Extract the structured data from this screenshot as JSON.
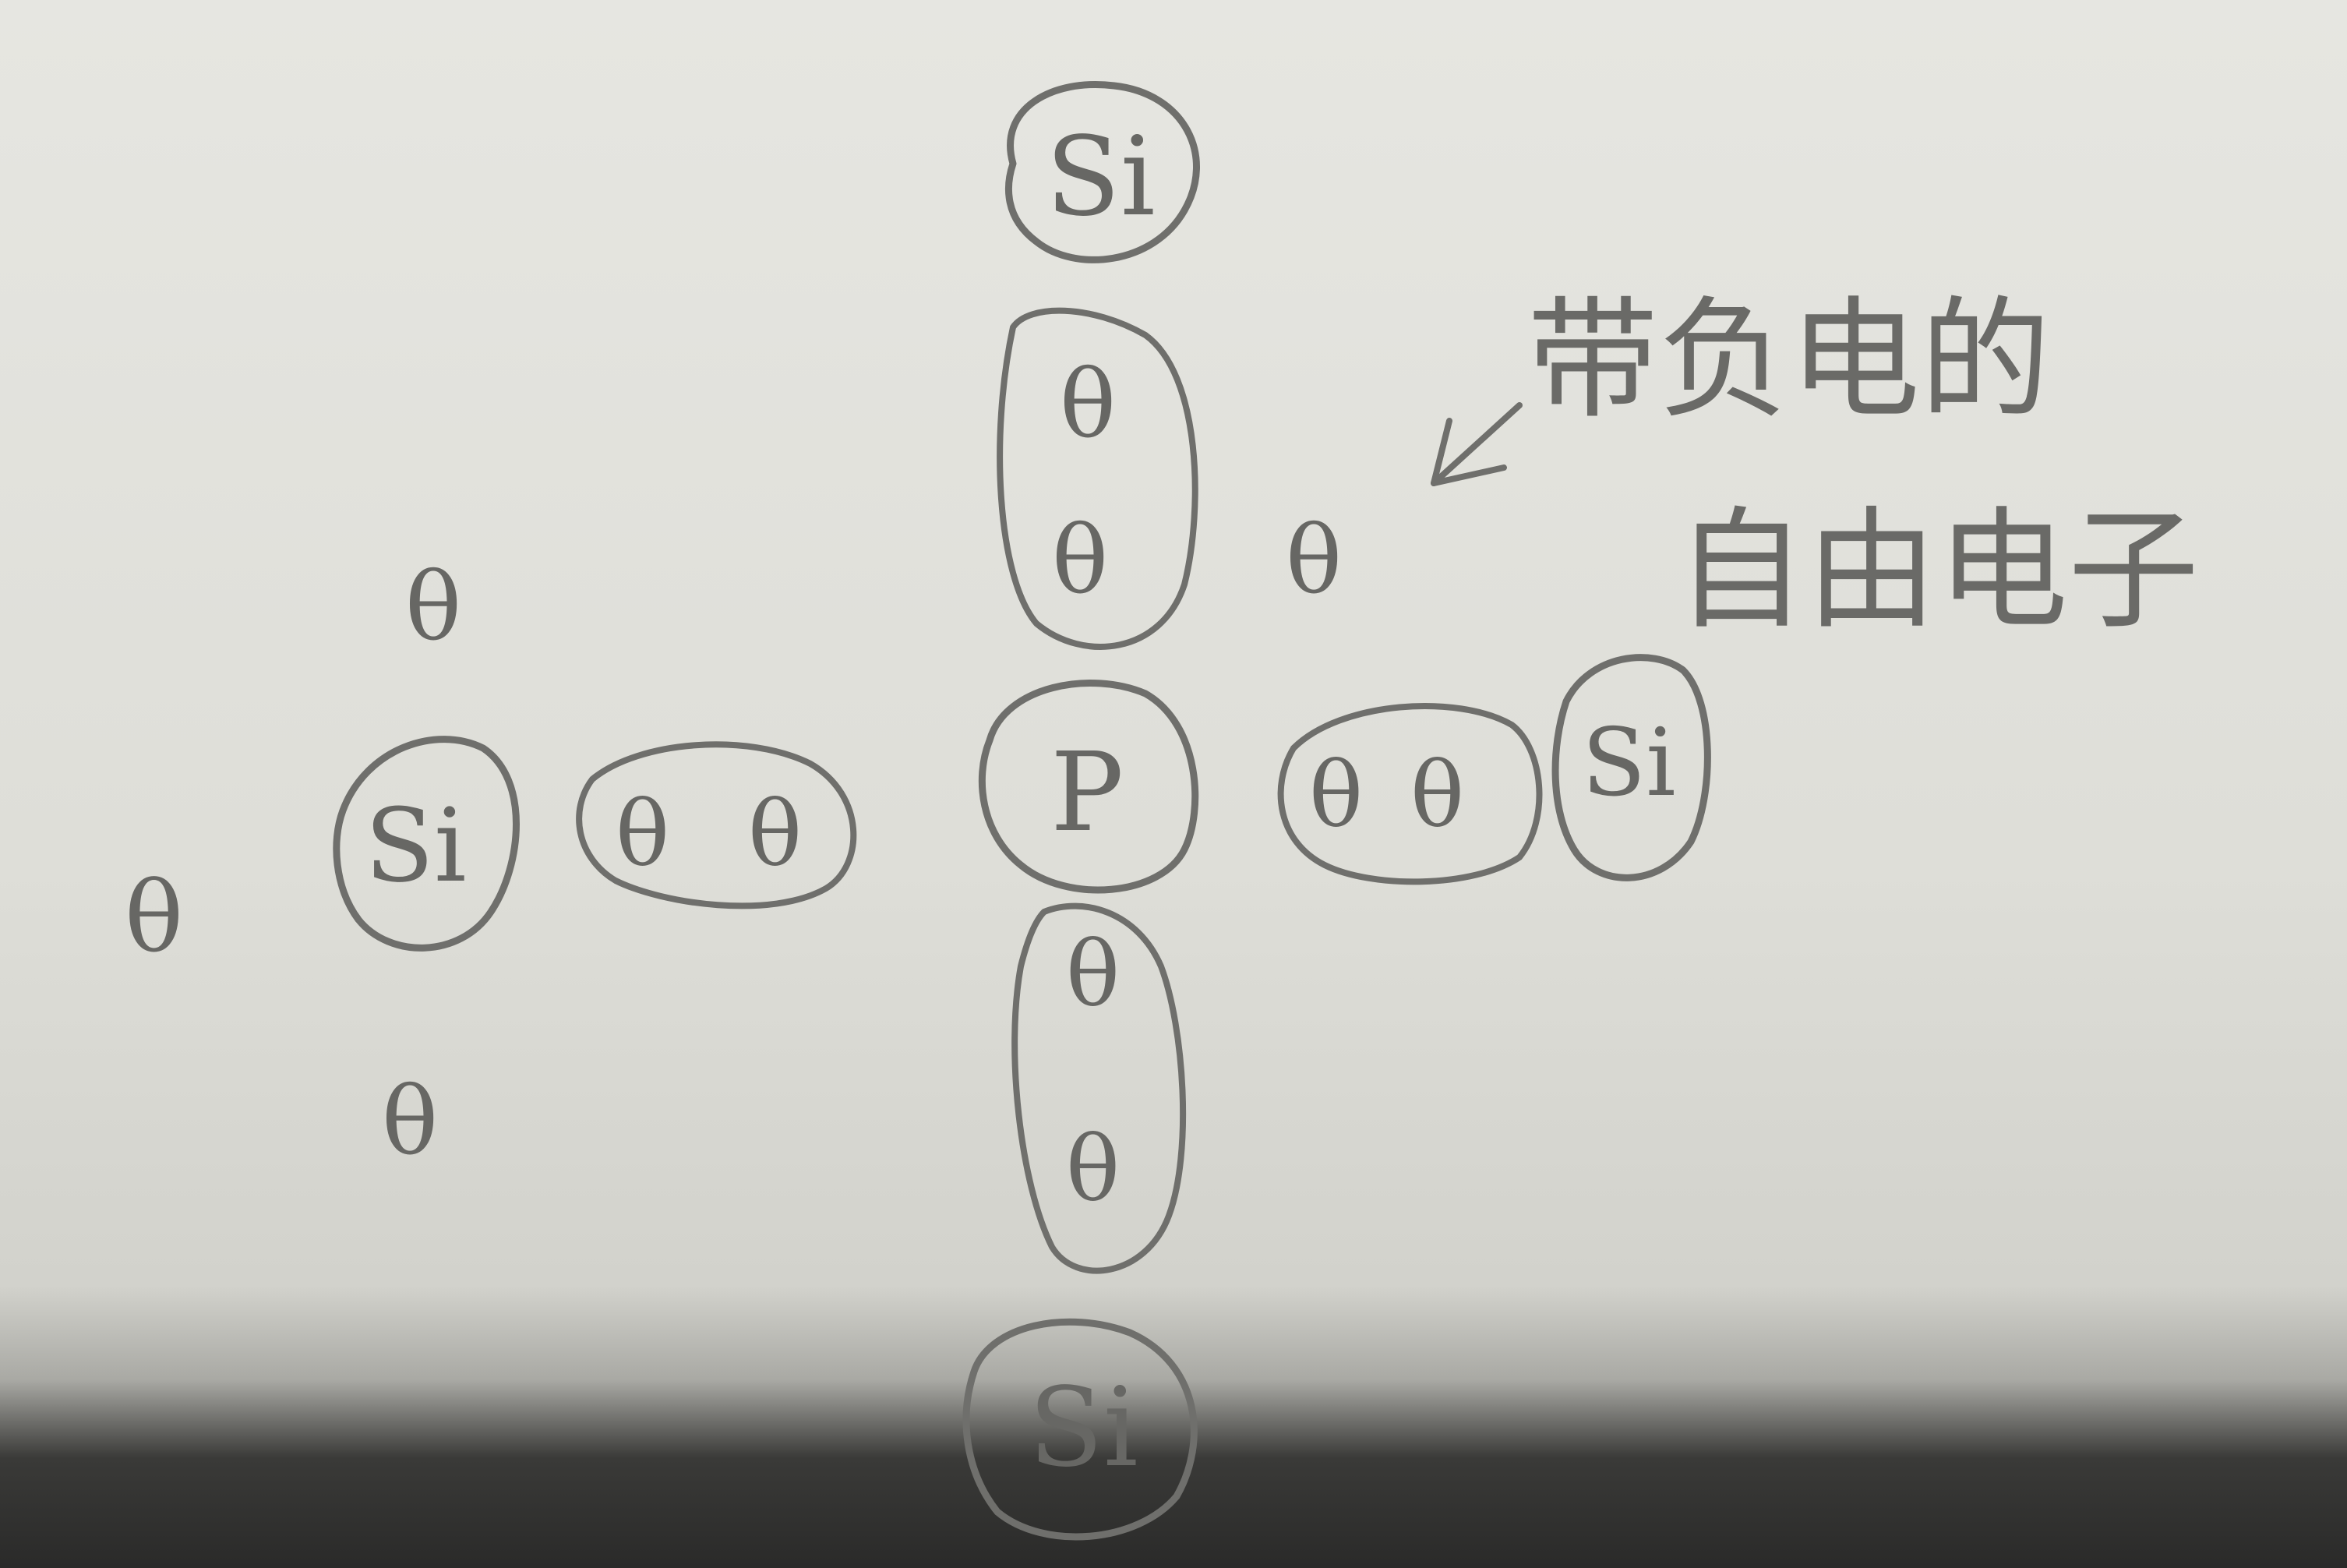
{
  "diagram": {
    "atoms": {
      "si_left": "Si",
      "si_top": "Si",
      "si_right": "Si",
      "si_bottom": "Si",
      "p_center": "P"
    },
    "electron_symbol": "θ",
    "annotation": {
      "line1": "带负电的",
      "line2": "自由电子"
    }
  }
}
